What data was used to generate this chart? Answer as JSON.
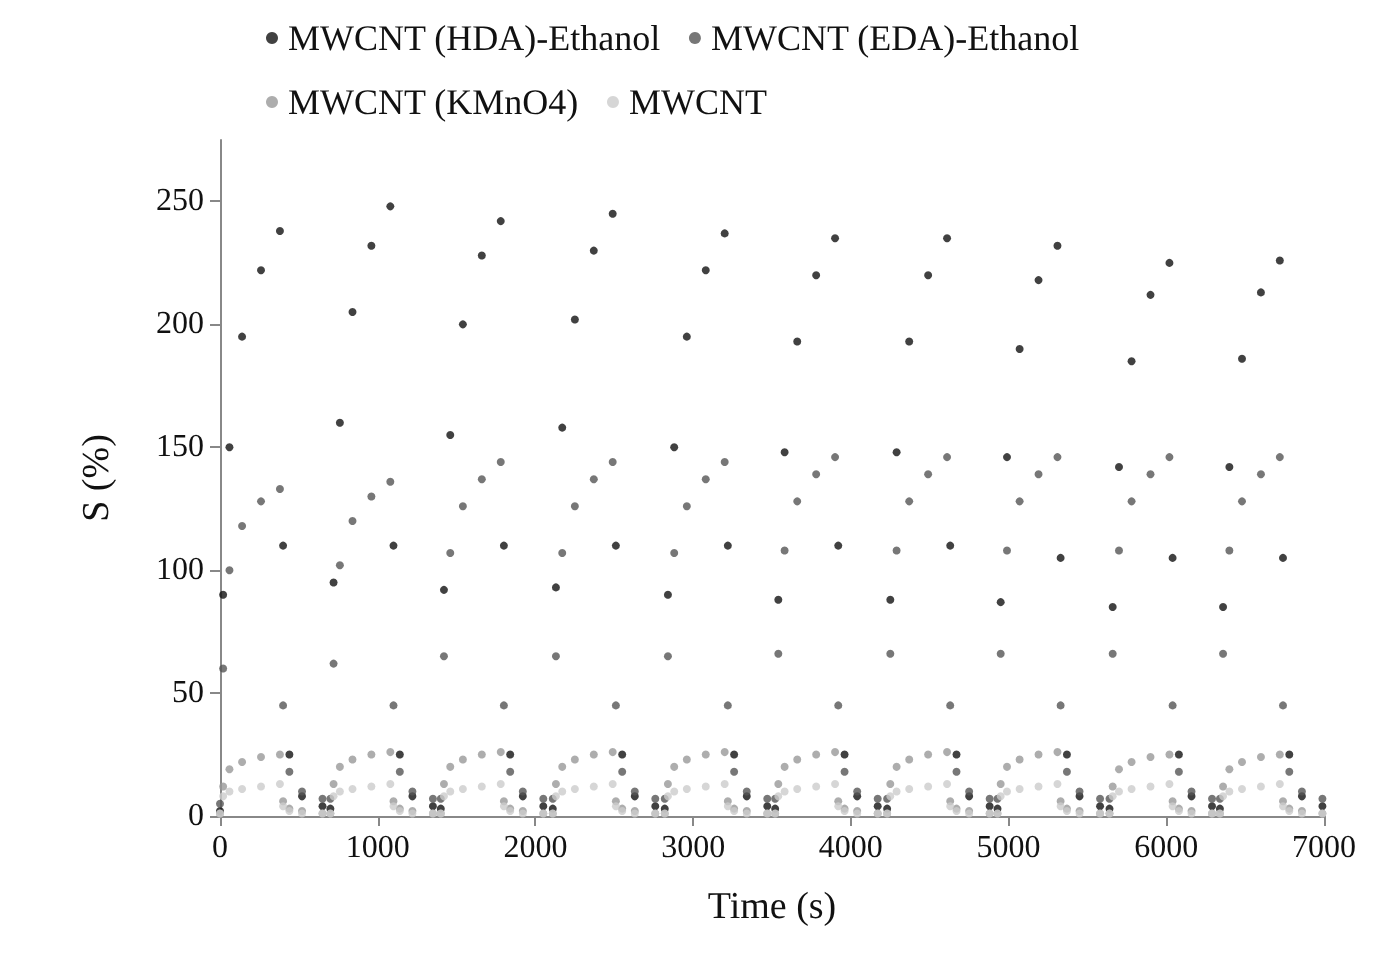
{
  "chart_data": {
    "type": "scatter",
    "xlabel": "Time (s)",
    "ylabel": "S (%)",
    "xlim": [
      0,
      7000
    ],
    "xticks": [
      0,
      1000,
      2000,
      3000,
      4000,
      5000,
      6000,
      7000
    ],
    "ylim": [
      0,
      275
    ],
    "yticks": [
      0,
      50,
      100,
      150,
      200,
      250
    ],
    "grid": false,
    "legend": "top",
    "marker": "circle",
    "x": [
      0,
      20,
      60,
      140,
      260,
      380,
      400,
      440,
      520,
      650,
      700,
      720,
      760,
      840,
      960,
      1080,
      1100,
      1140,
      1220,
      1350,
      1400,
      1420,
      1460,
      1540,
      1660,
      1780,
      1800,
      1840,
      1920,
      2050,
      2110,
      2130,
      2170,
      2250,
      2370,
      2490,
      2510,
      2550,
      2630,
      2760,
      2820,
      2840,
      2880,
      2960,
      3080,
      3200,
      3220,
      3260,
      3340,
      3470,
      3520,
      3540,
      3580,
      3660,
      3780,
      3900,
      3920,
      3960,
      4040,
      4170,
      4230,
      4250,
      4290,
      4370,
      4490,
      4610,
      4630,
      4670,
      4750,
      4880,
      4930,
      4950,
      4990,
      5070,
      5190,
      5310,
      5330,
      5370,
      5450,
      5580,
      5640,
      5660,
      5700,
      5780,
      5900,
      6020,
      6040,
      6080,
      6160,
      6290,
      6340,
      6360,
      6400,
      6480,
      6600,
      6720,
      6740,
      6780,
      6860,
      6990
    ],
    "series": [
      {
        "name": "MWCNT (HDA)-Ethanol",
        "color": "#111111",
        "values": [
          2,
          90,
          150,
          195,
          222,
          238,
          110,
          25,
          8,
          4,
          3,
          95,
          160,
          205,
          232,
          248,
          110,
          25,
          8,
          4,
          3,
          92,
          155,
          200,
          228,
          242,
          110,
          25,
          8,
          4,
          3,
          93,
          158,
          202,
          230,
          245,
          110,
          25,
          8,
          4,
          3,
          90,
          150,
          195,
          222,
          237,
          110,
          25,
          8,
          4,
          3,
          88,
          148,
          193,
          220,
          235,
          110,
          25,
          8,
          4,
          3,
          88,
          148,
          193,
          220,
          235,
          110,
          25,
          8,
          4,
          3,
          87,
          146,
          190,
          218,
          232,
          105,
          25,
          8,
          4,
          3,
          85,
          142,
          185,
          212,
          225,
          105,
          25,
          8,
          4,
          3,
          85,
          142,
          186,
          213,
          226,
          105,
          25,
          8,
          4
        ]
      },
      {
        "name": "MWCNT (EDA)-Ethanol",
        "color": "#555555",
        "values": [
          5,
          60,
          100,
          118,
          128,
          133,
          45,
          18,
          10,
          7,
          7,
          62,
          102,
          120,
          130,
          136,
          45,
          18,
          10,
          7,
          7,
          65,
          107,
          126,
          137,
          144,
          45,
          18,
          10,
          7,
          7,
          65,
          107,
          126,
          137,
          144,
          45,
          18,
          10,
          7,
          7,
          65,
          107,
          126,
          137,
          144,
          45,
          18,
          10,
          7,
          7,
          66,
          108,
          128,
          139,
          146,
          45,
          18,
          10,
          7,
          7,
          66,
          108,
          128,
          139,
          146,
          45,
          18,
          10,
          7,
          7,
          66,
          108,
          128,
          139,
          146,
          45,
          18,
          10,
          7,
          7,
          66,
          108,
          128,
          139,
          146,
          45,
          18,
          10,
          7,
          7,
          66,
          108,
          128,
          139,
          146,
          45,
          18,
          10,
          7
        ]
      },
      {
        "name": "MWCNT (KMnO4)",
        "color": "#999999",
        "values": [
          1,
          12,
          19,
          22,
          24,
          25,
          6,
          3,
          2,
          1,
          1,
          13,
          20,
          23,
          25,
          26,
          6,
          3,
          2,
          1,
          1,
          13,
          20,
          23,
          25,
          26,
          6,
          3,
          2,
          1,
          1,
          13,
          20,
          23,
          25,
          26,
          6,
          3,
          2,
          1,
          1,
          13,
          20,
          23,
          25,
          26,
          6,
          3,
          2,
          1,
          1,
          13,
          20,
          23,
          25,
          26,
          6,
          3,
          2,
          1,
          1,
          13,
          20,
          23,
          25,
          26,
          6,
          3,
          2,
          1,
          1,
          13,
          20,
          23,
          25,
          26,
          6,
          3,
          2,
          1,
          1,
          12,
          19,
          22,
          24,
          25,
          6,
          3,
          2,
          1,
          1,
          12,
          19,
          22,
          24,
          25,
          6,
          3,
          2,
          1
        ]
      },
      {
        "name": "MWCNT",
        "color": "#cccccc",
        "values": [
          1,
          8,
          10,
          11,
          12,
          13,
          4,
          2,
          1,
          1,
          1,
          8,
          10,
          11,
          12,
          13,
          4,
          2,
          1,
          1,
          1,
          8,
          10,
          11,
          12,
          13,
          4,
          2,
          1,
          1,
          1,
          8,
          10,
          11,
          12,
          13,
          4,
          2,
          1,
          1,
          1,
          8,
          10,
          11,
          12,
          13,
          4,
          2,
          1,
          1,
          1,
          8,
          10,
          11,
          12,
          13,
          4,
          2,
          1,
          1,
          1,
          8,
          10,
          11,
          12,
          13,
          4,
          2,
          1,
          1,
          1,
          8,
          10,
          11,
          12,
          13,
          4,
          2,
          1,
          1,
          1,
          8,
          10,
          11,
          12,
          13,
          4,
          2,
          1,
          1,
          1,
          8,
          10,
          11,
          12,
          13,
          4,
          2,
          1,
          1
        ]
      }
    ]
  }
}
